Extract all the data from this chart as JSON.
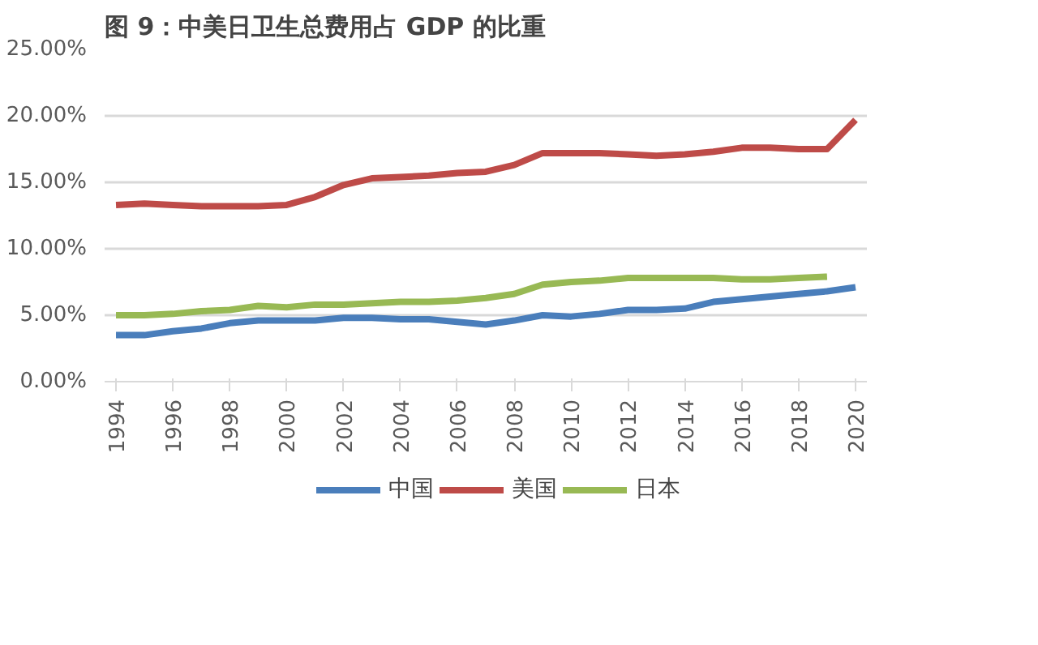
{
  "chart_data": {
    "type": "line",
    "title": "图 9：中美日卫生总费用占 GDP 的比重",
    "x": [
      1994,
      1995,
      1996,
      1997,
      1998,
      1999,
      2000,
      2001,
      2002,
      2003,
      2004,
      2005,
      2006,
      2007,
      2008,
      2009,
      2010,
      2011,
      2012,
      2013,
      2014,
      2015,
      2016,
      2017,
      2018,
      2019,
      2020
    ],
    "series": [
      {
        "name": "中国",
        "color": "#4a7ebb",
        "values": [
          3.5,
          3.5,
          3.8,
          4.0,
          4.4,
          4.6,
          4.6,
          4.6,
          4.8,
          4.8,
          4.7,
          4.7,
          4.5,
          4.3,
          4.6,
          5.0,
          4.9,
          5.1,
          5.4,
          5.4,
          5.5,
          6.0,
          6.2,
          6.4,
          6.6,
          6.8,
          7.1
        ]
      },
      {
        "name": "美国",
        "color": "#be4b48",
        "values": [
          13.3,
          13.4,
          13.3,
          13.2,
          13.2,
          13.2,
          13.3,
          13.9,
          14.8,
          15.3,
          15.4,
          15.5,
          15.7,
          15.8,
          16.3,
          17.2,
          17.2,
          17.2,
          17.1,
          17.0,
          17.1,
          17.3,
          17.6,
          17.6,
          17.5,
          17.5,
          19.7
        ]
      },
      {
        "name": "日本",
        "color": "#98b954",
        "values": [
          5.0,
          5.0,
          5.1,
          5.3,
          5.4,
          5.7,
          5.6,
          5.8,
          5.8,
          5.9,
          6.0,
          6.0,
          6.1,
          6.3,
          6.6,
          7.3,
          7.5,
          7.6,
          7.8,
          7.8,
          7.8,
          7.8,
          7.7,
          7.7,
          7.8,
          7.9,
          null
        ]
      }
    ],
    "xlim": [
      1993.6,
      2020.4
    ],
    "xticks": [
      1994,
      1996,
      1998,
      2000,
      2002,
      2004,
      2006,
      2008,
      2010,
      2012,
      2014,
      2016,
      2018,
      2020
    ],
    "ylim": [
      0,
      25
    ],
    "yticks": [
      {
        "value": 0,
        "label": "0.00%"
      },
      {
        "value": 5,
        "label": "5.00%"
      },
      {
        "value": 10,
        "label": "10.00%"
      },
      {
        "value": 15,
        "label": "15.00%"
      },
      {
        "value": 20,
        "label": "20.00%"
      },
      {
        "value": 25,
        "label": "25.00%"
      }
    ],
    "grid": "y",
    "legend": "bottom",
    "marker": "none",
    "line_style": "solid"
  }
}
